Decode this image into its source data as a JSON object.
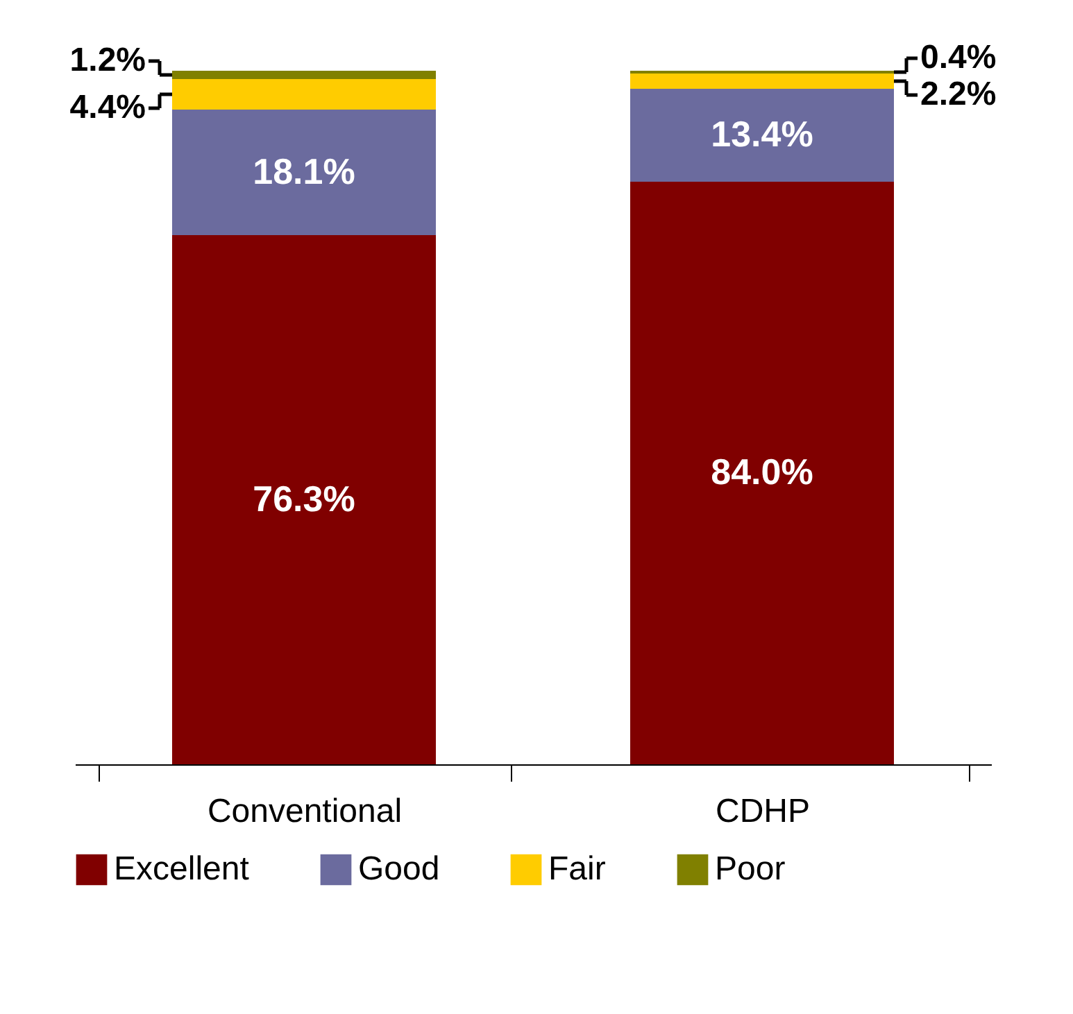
{
  "chart_data": {
    "type": "bar",
    "stacked": true,
    "categories": [
      "Conventional",
      "CDHP"
    ],
    "ylim": [
      0,
      100
    ],
    "legend": "bottom",
    "grid": false,
    "series": [
      {
        "name": "Excellent",
        "color": "#800000",
        "values": [
          76.3,
          84.0
        ],
        "value_labels": [
          "76.3%",
          "84.0%"
        ]
      },
      {
        "name": "Good",
        "color": "#6b6b9e",
        "values": [
          18.1,
          13.4
        ],
        "value_labels": [
          "18.1%",
          "13.4%"
        ]
      },
      {
        "name": "Fair",
        "color": "#ffcc00",
        "values": [
          4.4,
          2.2
        ],
        "value_labels": [
          "4.4%",
          "2.2%"
        ]
      },
      {
        "name": "Poor",
        "color": "#808000",
        "values": [
          1.2,
          0.4
        ],
        "value_labels": [
          "1.2%",
          "0.4%"
        ]
      }
    ]
  }
}
